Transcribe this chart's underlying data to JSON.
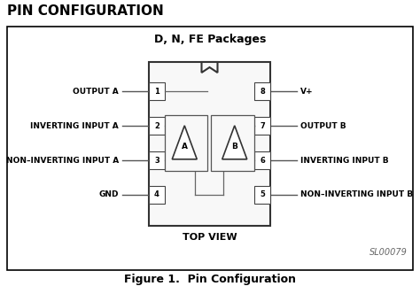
{
  "title": "PIN CONFIGURATION",
  "subtitle": "D, N, FE Packages",
  "figure_caption": "Figure 1.  Pin Configuration",
  "watermark": "SL00079",
  "top_view_label": "TOP VIEW",
  "left_pins": [
    {
      "num": "1",
      "label": "OUTPUT A"
    },
    {
      "num": "2",
      "label": "INVERTING INPUT A"
    },
    {
      "num": "3",
      "label": "NON–INVERTING INPUT A"
    },
    {
      "num": "4",
      "label": "GND"
    }
  ],
  "right_pins": [
    {
      "num": "8",
      "label": "V+"
    },
    {
      "num": "7",
      "label": "OUTPUT B"
    },
    {
      "num": "6",
      "label": "INVERTING INPUT B"
    },
    {
      "num": "5",
      "label": "NON–INVERTING INPUT B"
    }
  ],
  "bg_color": "#ffffff",
  "border_color": "#000000",
  "ic_edge_color": "#555555",
  "pin_line_color": "#555555",
  "text_color": "#000000",
  "title_color": "#000000"
}
